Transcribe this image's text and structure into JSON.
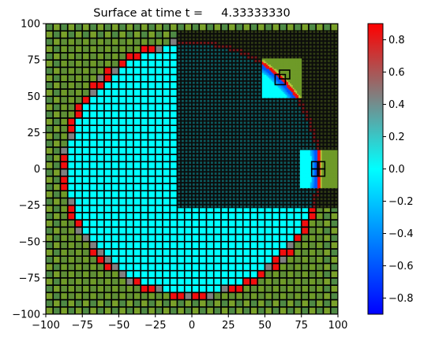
{
  "chart_data": {
    "type": "heatmap",
    "title": "Surface at time t =     4.33333330",
    "xlabel": "",
    "ylabel": "",
    "xlim": [
      -100,
      100
    ],
    "ylim": [
      -100,
      100
    ],
    "x_ticks": [
      -100,
      -75,
      -50,
      -25,
      0,
      25,
      50,
      75,
      100
    ],
    "y_ticks": [
      -100,
      -75,
      -50,
      -25,
      0,
      25,
      50,
      75,
      100
    ],
    "grid": false,
    "colormap": {
      "stops": [
        "#0000ff",
        "#00ffff",
        "#808080",
        "#ff0000"
      ],
      "range": [
        -0.9,
        0.9
      ],
      "ticks": [
        -0.8,
        -0.6,
        -0.4,
        -0.2,
        0.0,
        0.2,
        0.4,
        0.6,
        0.8
      ],
      "tick_labels": [
        "−0.8",
        "−0.6",
        "−0.4",
        "−0.2",
        "0.0",
        "0.2",
        "0.4",
        "0.6",
        "0.8"
      ]
    },
    "surface": {
      "circle_center": [
        0,
        0
      ],
      "circle_radius": 87,
      "inside_value": 0.0,
      "ring_value": 0.85,
      "ring_alt_value": 0.45,
      "background_value": "land"
    },
    "refined_region": {
      "x": [
        -10,
        100
      ],
      "y": [
        -27,
        95
      ]
    },
    "insets": [
      {
        "x": [
          48,
          75
        ],
        "y": [
          49,
          76
        ],
        "boxes": [
          [
            57,
            58,
            64,
            65
          ],
          [
            60,
            62,
            67,
            68
          ]
        ]
      },
      {
        "x": [
          74,
          100
        ],
        "y": [
          -13,
          13
        ],
        "boxes": [
          [
            82,
            -5,
            87,
            0
          ],
          [
            86,
            -5,
            91,
            0
          ],
          [
            82,
            0,
            87,
            5
          ],
          [
            86,
            0,
            91,
            5
          ]
        ]
      }
    ]
  }
}
